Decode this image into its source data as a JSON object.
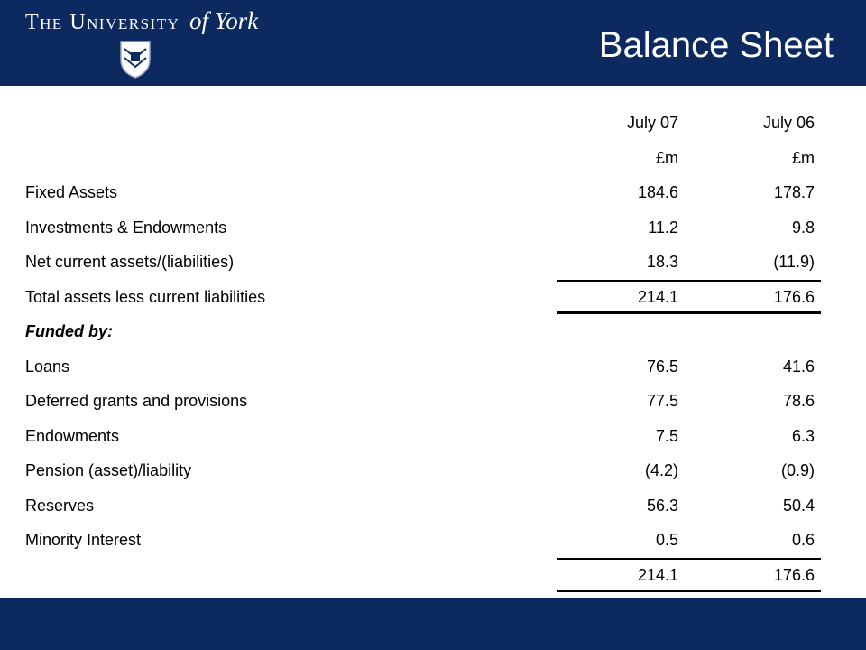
{
  "header": {
    "logo_main": "The University",
    "logo_script": "of York",
    "title": "Balance Sheet"
  },
  "table": {
    "columns": [
      "July 07",
      "July 06"
    ],
    "units": [
      "£m",
      "£m"
    ],
    "rows": [
      {
        "label": "Fixed Assets",
        "values": [
          "184.6",
          "178.7"
        ]
      },
      {
        "label": "Investments & Endowments",
        "values": [
          "11.2",
          "9.8"
        ]
      },
      {
        "label": "Net current assets/(liabilities)",
        "values": [
          "18.3",
          "(11.9)"
        ]
      },
      {
        "label": "Total assets less current liabilities",
        "values": [
          "214.1",
          "176.6"
        ]
      },
      {
        "label": "Funded by:"
      },
      {
        "label": "Loans",
        "values": [
          "76.5",
          "41.6"
        ]
      },
      {
        "label": "Deferred grants and provisions",
        "values": [
          "77.5",
          "78.6"
        ]
      },
      {
        "label": "Endowments",
        "values": [
          "7.5",
          "6.3"
        ]
      },
      {
        "label": "Pension (asset)/liability",
        "values": [
          "(4.2)",
          "(0.9)"
        ]
      },
      {
        "label": "Reserves",
        "values": [
          "56.3",
          "50.4"
        ]
      },
      {
        "label": "Minority Interest",
        "values": [
          "0.5",
          "0.6"
        ]
      },
      {
        "values": [
          "214.1",
          "176.6"
        ]
      }
    ]
  }
}
